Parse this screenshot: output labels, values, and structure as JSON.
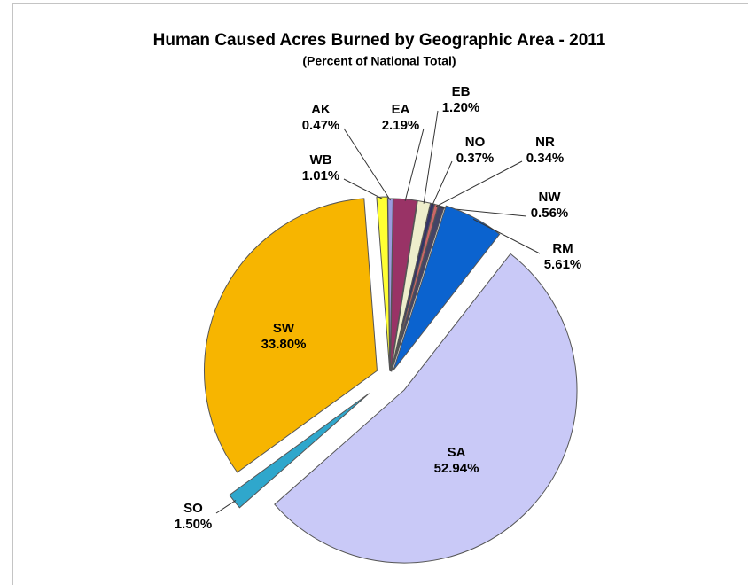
{
  "chart_data": {
    "type": "pie",
    "title": "Human Caused Acres Burned by Geographic Area - 2011",
    "subtitle": "(Percent of National Total)",
    "categories": [
      "EA",
      "EB",
      "NO",
      "NR",
      "NW",
      "RM",
      "SA",
      "SO",
      "SW",
      "WB",
      "AK"
    ],
    "values": [
      2.19,
      1.2,
      0.37,
      0.34,
      0.56,
      5.61,
      52.94,
      1.5,
      33.8,
      1.01,
      0.47
    ],
    "value_labels": [
      "2.19%",
      "1.20%",
      "0.37%",
      "0.34%",
      "0.56%",
      "5.61%",
      "52.94%",
      "1.50%",
      "33.80%",
      "1.01%",
      "0.47%"
    ],
    "colors": [
      "#993366",
      "#eeeecc",
      "#333366",
      "#cc6666",
      "#444466",
      "#0b63cf",
      "#c9c9f7",
      "#2fa7cc",
      "#f7b500",
      "#ffff33",
      "#9a9ade"
    ]
  }
}
